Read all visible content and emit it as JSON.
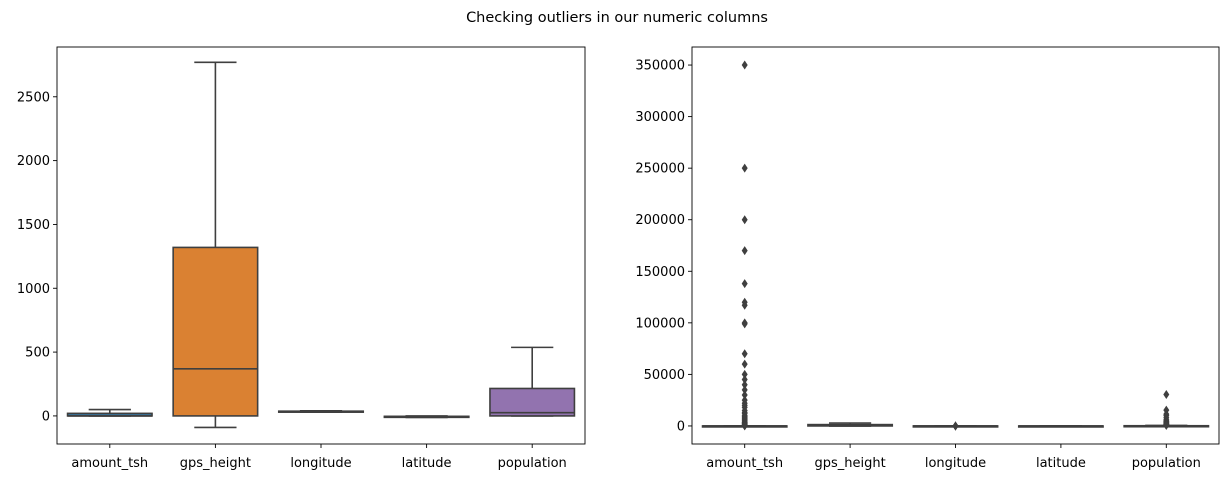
{
  "figure": {
    "title": "Checking outliers in our numeric columns"
  },
  "chart_data": [
    {
      "type": "box",
      "title": "",
      "xlabel": "",
      "ylabel": "",
      "showfliers": false,
      "grid": false,
      "categories": [
        "amount_tsh",
        "gps_height",
        "longitude",
        "latitude",
        "population"
      ],
      "ylim": [
        -220,
        2890
      ],
      "yticks": [
        0,
        500,
        1000,
        1500,
        2000,
        2500
      ],
      "yticklabels": [
        "0",
        "500",
        "1000",
        "1500",
        "2000",
        "2500"
      ],
      "boxes": [
        {
          "category": "amount_tsh",
          "whislo": 0,
          "q1": 0,
          "median": 0,
          "q3": 20,
          "whishi": 50,
          "color": "#3274a1"
        },
        {
          "category": "gps_height",
          "whislo": -90,
          "q1": 0,
          "median": 369,
          "q3": 1320,
          "whishi": 2770,
          "color": "#e1812c"
        },
        {
          "category": "longitude",
          "whislo": 29.6,
          "q1": 33.1,
          "median": 34.9,
          "q3": 37.2,
          "whishi": 40.3,
          "color": "#3a923a"
        },
        {
          "category": "latitude",
          "whislo": -11.6,
          "q1": -8.5,
          "median": -5.0,
          "q3": -3.3,
          "whishi": 0,
          "color": "#c03d3e"
        },
        {
          "category": "population",
          "whislo": 0,
          "q1": 0,
          "median": 25,
          "q3": 215,
          "whishi": 537,
          "color": "#9372b2"
        }
      ]
    },
    {
      "type": "box",
      "title": "",
      "xlabel": "",
      "ylabel": "",
      "showfliers": true,
      "grid": false,
      "categories": [
        "amount_tsh",
        "gps_height",
        "longitude",
        "latitude",
        "population"
      ],
      "ylim": [
        -17500,
        367500
      ],
      "yticks": [
        0,
        50000,
        100000,
        150000,
        200000,
        250000,
        300000,
        350000
      ],
      "yticklabels": [
        "0",
        "50000",
        "100000",
        "150000",
        "200000",
        "250000",
        "300000",
        "350000"
      ],
      "boxes": [
        {
          "category": "amount_tsh",
          "whislo": 0,
          "q1": 0,
          "median": 0,
          "q3": 20,
          "whishi": 50,
          "color": "#3274a1",
          "fliers": [
            350000,
            250000,
            200000,
            170000,
            138000,
            120000,
            117000,
            100000,
            99000,
            70000,
            60000,
            50000,
            45000,
            40000,
            35000,
            30000,
            25000,
            22000,
            20000,
            18000,
            15000,
            13000,
            12000,
            10000,
            9000,
            8000,
            7000,
            6000,
            5000,
            4000,
            3500,
            3000,
            2500,
            2000,
            1500,
            1000,
            700,
            500,
            300,
            200,
            100
          ]
        },
        {
          "category": "gps_height",
          "whislo": -90,
          "q1": 0,
          "median": 369,
          "q3": 1320,
          "whishi": 2770,
          "color": "#e1812c",
          "fliers": []
        },
        {
          "category": "longitude",
          "whislo": 29.6,
          "q1": 33.1,
          "median": 34.9,
          "q3": 37.2,
          "whishi": 40.3,
          "color": "#3a923a",
          "fliers": [
            0,
            0,
            0,
            0
          ]
        },
        {
          "category": "latitude",
          "whislo": -11.6,
          "q1": -8.5,
          "median": -5.0,
          "q3": -3.3,
          "whishi": 0,
          "color": "#c03d3e",
          "fliers": []
        },
        {
          "category": "population",
          "whislo": 0,
          "q1": 0,
          "median": 25,
          "q3": 215,
          "whishi": 537,
          "color": "#9372b2",
          "fliers": [
            30500,
            15300,
            11500,
            10000,
            8000,
            6000,
            5000,
            4500,
            4000,
            3500,
            3000,
            2500,
            2000,
            1800,
            1500,
            1200,
            1000,
            900,
            800,
            700,
            600
          ]
        }
      ]
    }
  ]
}
